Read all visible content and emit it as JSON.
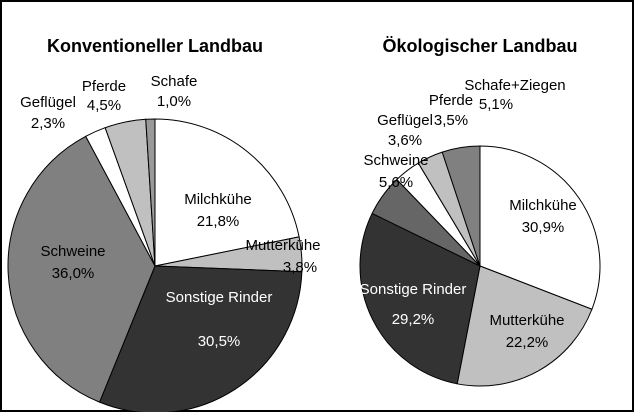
{
  "chart_data": [
    {
      "type": "pie",
      "title": "Konventioneller Landbau",
      "categories": [
        "Milchkühe",
        "Mutterkühe",
        "Sonstige Rinder",
        "Schweine",
        "Geflügel",
        "Pferde",
        "Schafe"
      ],
      "values": [
        21.8,
        3.8,
        30.5,
        36.0,
        2.3,
        4.5,
        1.0
      ],
      "value_labels": [
        "21,8%",
        "3,8%",
        "30,5%",
        "36,0%",
        "2,3%",
        "4,5%",
        "1,0%"
      ],
      "colors": [
        "#ffffff",
        "#c0c0c0",
        "#333333",
        "#808080",
        "#ffffff",
        "#c0c0c0",
        "#999999"
      ]
    },
    {
      "type": "pie",
      "title": "Ökologischer Landbau",
      "categories": [
        "Milchkühe",
        "Mutterkühe",
        "Sonstige Rinder",
        "Schweine",
        "Geflügel",
        "Pferde",
        "Schafe+Ziegen"
      ],
      "values": [
        30.9,
        22.2,
        29.2,
        5.6,
        3.6,
        3.5,
        5.1
      ],
      "value_labels": [
        "30,9%",
        "22,2%",
        "29,2%",
        "5,6%",
        "3,6%",
        "3,5%",
        "5,1%"
      ],
      "colors": [
        "#ffffff",
        "#c0c0c0",
        "#333333",
        "#666666",
        "#ffffff",
        "#c0c0c0",
        "#808080"
      ]
    }
  ]
}
